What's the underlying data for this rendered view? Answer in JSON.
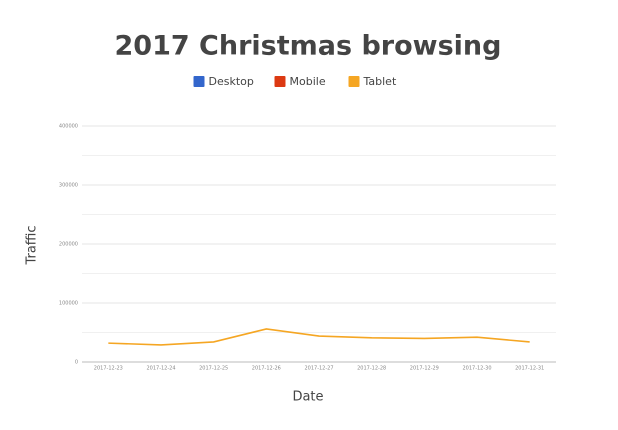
{
  "chart_data": {
    "type": "line",
    "title": "2017 Christmas browsing",
    "x_label": "Date",
    "y_label": "Traffic",
    "categories": [
      "2017-12-23",
      "2017-12-24",
      "2017-12-25",
      "2017-12-26",
      "2017-12-27",
      "2017-12-28",
      "2017-12-29",
      "2017-12-30",
      "2017-12-31"
    ],
    "series": [
      {
        "name": "Desktop",
        "color": "#3366cc",
        "values": [
          null,
          null,
          null,
          null,
          null,
          null,
          null,
          null,
          null
        ]
      },
      {
        "name": "Mobile",
        "color": "#dc3912",
        "values": [
          null,
          null,
          null,
          null,
          null,
          null,
          null,
          null,
          null
        ]
      },
      {
        "name": "Tablet",
        "color": "#f5a623",
        "values": [
          32000,
          29000,
          34000,
          56000,
          44000,
          41000,
          40000,
          42000,
          34000
        ]
      }
    ],
    "ylim": [
      0,
      400000
    ],
    "yticks": [
      0,
      100000,
      200000,
      300000,
      400000
    ],
    "y_minor_ticks": [
      50000,
      150000,
      250000,
      350000
    ],
    "grid": true,
    "legend": "top"
  }
}
